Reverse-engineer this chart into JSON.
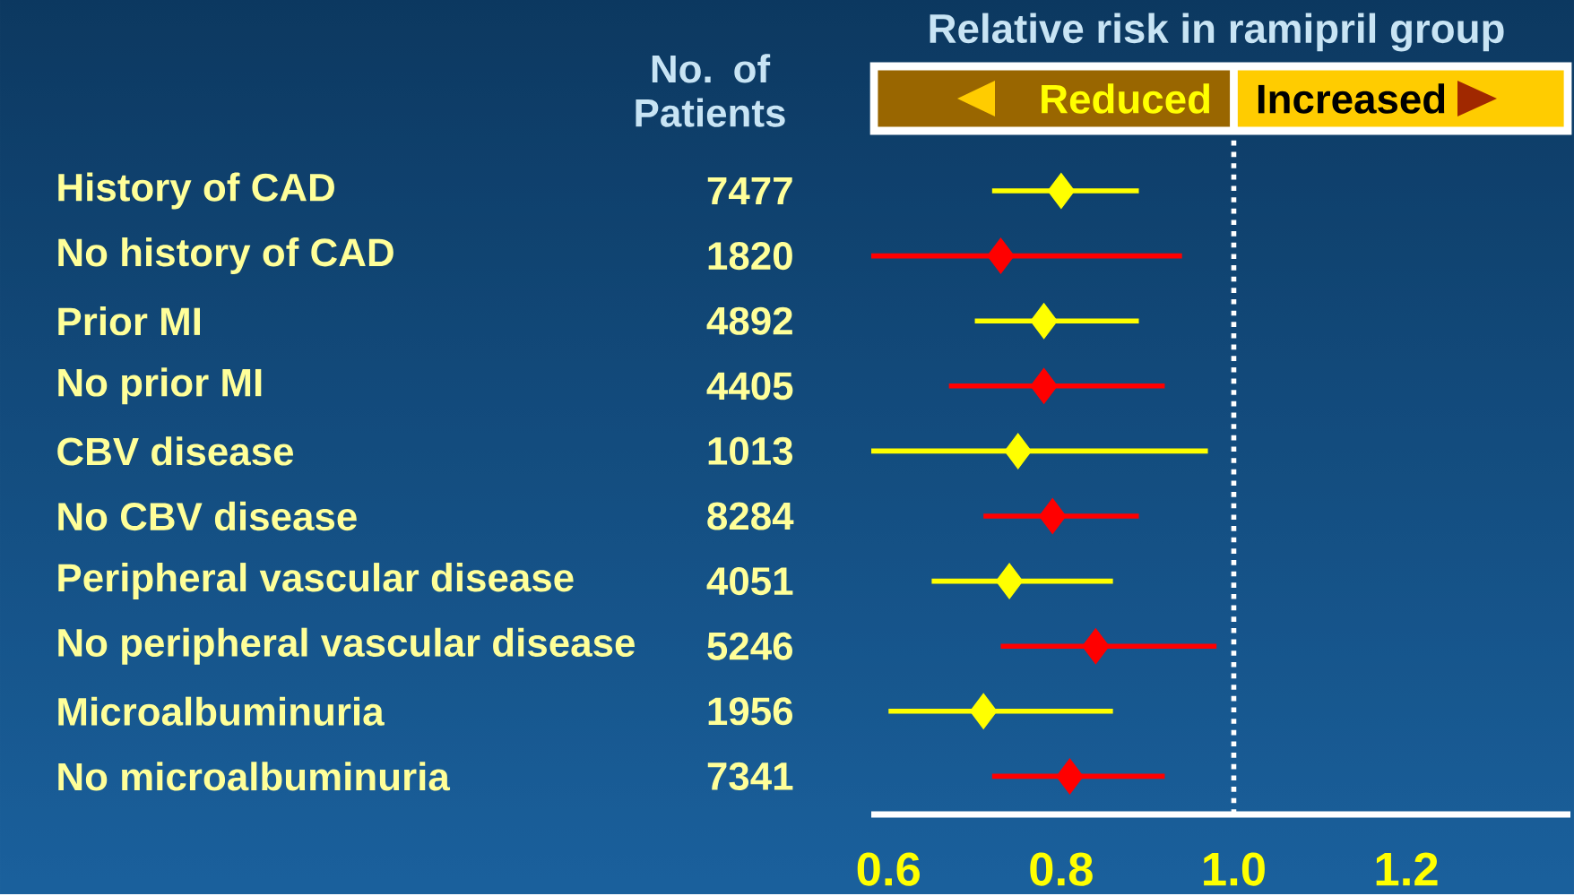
{
  "chart_data": {
    "type": "scatter",
    "orientation": "horizontal",
    "title": "Relative risk in ramipril group",
    "categories": [
      "History of CAD",
      "No history of CAD",
      "Prior MI",
      "No prior MI",
      "CBV disease",
      "No CBV disease",
      "Peripheral vascular disease",
      "No peripheral vascular disease",
      "Microalbuminuria",
      "No microalbuminuria"
    ],
    "series": [
      {
        "color": "#ffff00",
        "values": [
          0.8,
          null,
          0.78,
          null,
          0.75,
          null,
          0.74,
          null,
          0.71,
          null
        ],
        "errors": [
          [
            0.72,
            0.89
          ],
          null,
          [
            0.7,
            0.89
          ],
          null,
          [
            0.58,
            0.97
          ],
          null,
          [
            0.65,
            0.86
          ],
          null,
          [
            0.6,
            0.86
          ],
          null
        ]
      },
      {
        "color": "#ff0000",
        "values": [
          null,
          0.73,
          null,
          0.78,
          null,
          0.79,
          null,
          0.84,
          null,
          0.81
        ],
        "errors": [
          null,
          [
            0.58,
            0.94
          ],
          null,
          [
            0.67,
            0.92
          ],
          null,
          [
            0.71,
            0.89
          ],
          null,
          [
            0.73,
            0.98
          ],
          null,
          [
            0.72,
            0.92
          ]
        ]
      }
    ],
    "marker": "diamond",
    "xlim": [
      0.58,
      1.39
    ],
    "xticks": [
      0.6,
      0.8,
      {
        "value": 1,
        "label": "1.0"
      },
      1.2
    ],
    "ref_lines": [
      {
        "axis": "x",
        "value": 1,
        "color": "#ffffff",
        "line_style": "dotted"
      }
    ],
    "annotations": [
      "No. of Patients",
      "Reduced",
      "Increased",
      "7477",
      "1820",
      "4892",
      "4405",
      "1013",
      "8284",
      "4051",
      "5246",
      "1956",
      "7341"
    ]
  }
}
